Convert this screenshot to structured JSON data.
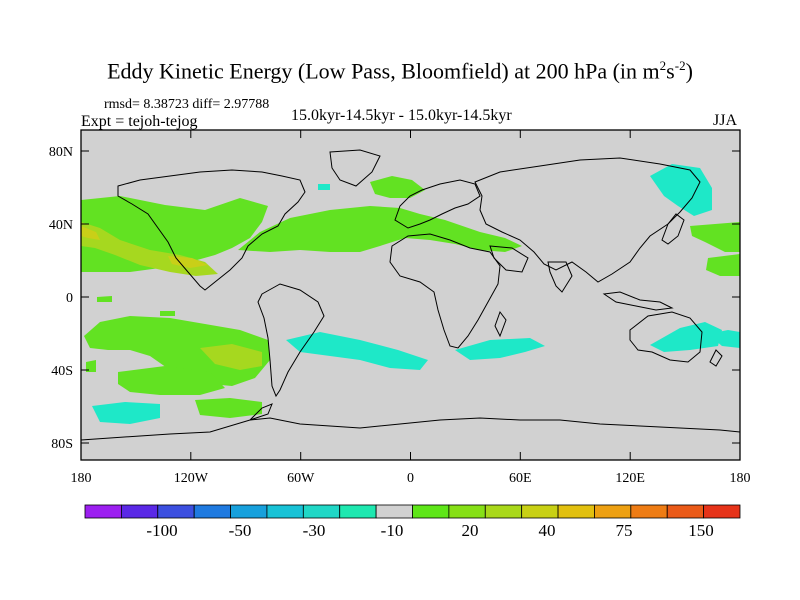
{
  "title": {
    "main": "Eddy Kinetic Energy (Low Pass, Bloomfield) at 200 hPa (in m",
    "sup1": "2",
    "mid": "s",
    "sup2": "-2",
    "close": ")"
  },
  "stats": "rmsd= 8.38723 diff= 2.97788",
  "period": "15.0kyr-14.5kyr - 15.0kyr-14.5kyr",
  "experiment": "Expt = tejoh-tejog",
  "season": "JJA",
  "axes": {
    "lat_labels": [
      "80N",
      "40N",
      "0",
      "40S",
      "80S"
    ],
    "lon_labels": [
      "180",
      "120W",
      "60W",
      "0",
      "60E",
      "120E",
      "180"
    ]
  },
  "colorbar": {
    "colors": [
      "#9c1ff0",
      "#5a28e6",
      "#3c4fe0",
      "#1f7ae0",
      "#17a0dc",
      "#18c2d6",
      "#20d7c6",
      "#1ee8b0",
      "#d1d1d1",
      "#5ee618",
      "#86e016",
      "#a9d81a",
      "#c8d014",
      "#e2c00f",
      "#eda012",
      "#ee7c14",
      "#ea5a18",
      "#e63319"
    ],
    "labels": [
      "-100",
      "-50",
      "-30",
      "-10",
      "20",
      "40",
      "75",
      "150"
    ]
  },
  "colors": {
    "land_bg": "#d1d1d1",
    "cyan": "#1ee8c8",
    "green": "#62e222",
    "yellowgreen": "#b0d620"
  }
}
